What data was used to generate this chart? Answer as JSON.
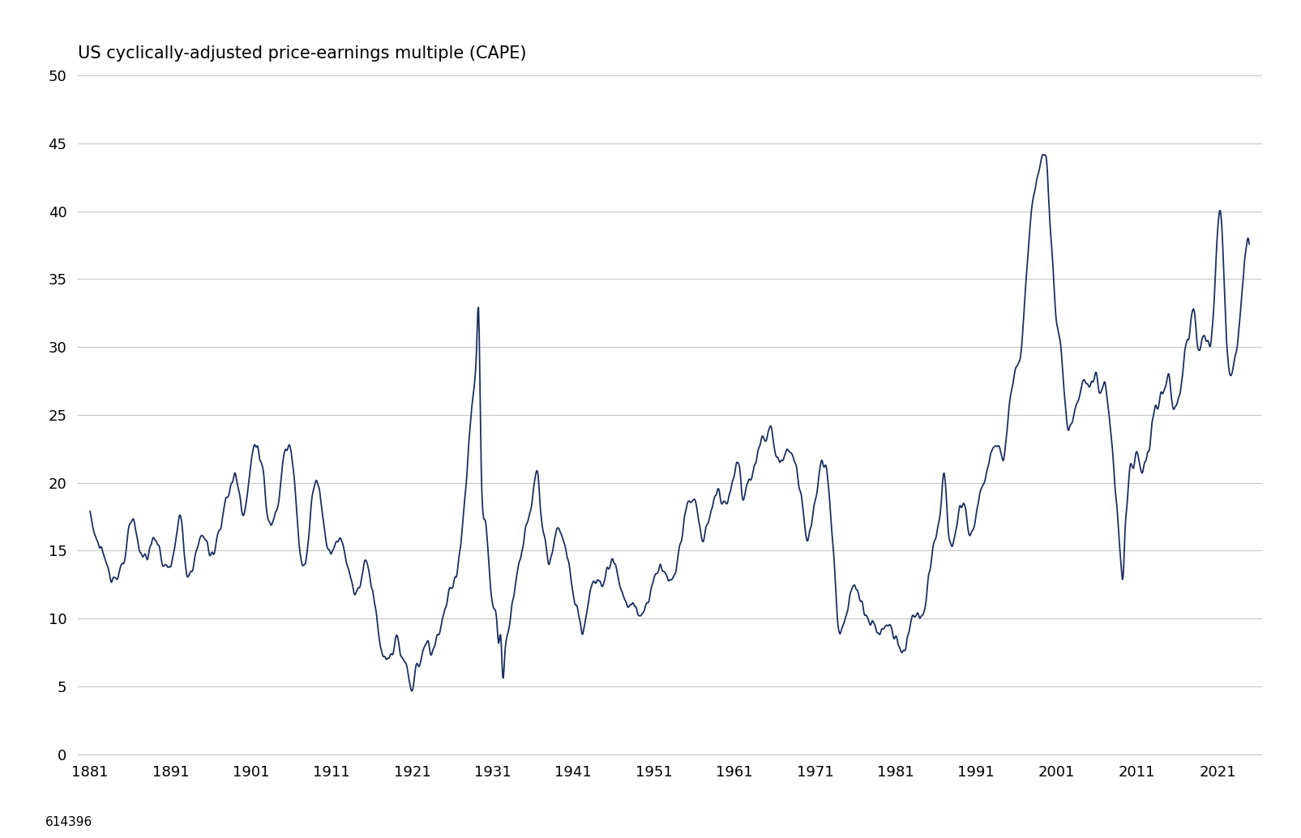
{
  "title": "US cyclically-adjusted price-earnings multiple (CAPE)",
  "line_color": "#1c2f5e",
  "background_color": "#ffffff",
  "grid_color": "#c8c8c8",
  "title_fontsize": 15,
  "tick_fontsize": 13,
  "footer_text": "614396",
  "footer_fontsize": 11,
  "ylim": [
    0,
    50
  ],
  "yticks": [
    0,
    5,
    10,
    15,
    20,
    25,
    30,
    35,
    40,
    45,
    50
  ],
  "xtick_years": [
    1881,
    1891,
    1901,
    1911,
    1921,
    1931,
    1941,
    1951,
    1961,
    1971,
    1981,
    1991,
    2001,
    2011,
    2021
  ],
  "xstart": 1881.0,
  "xend": 2025.0,
  "line_width": 1.3
}
